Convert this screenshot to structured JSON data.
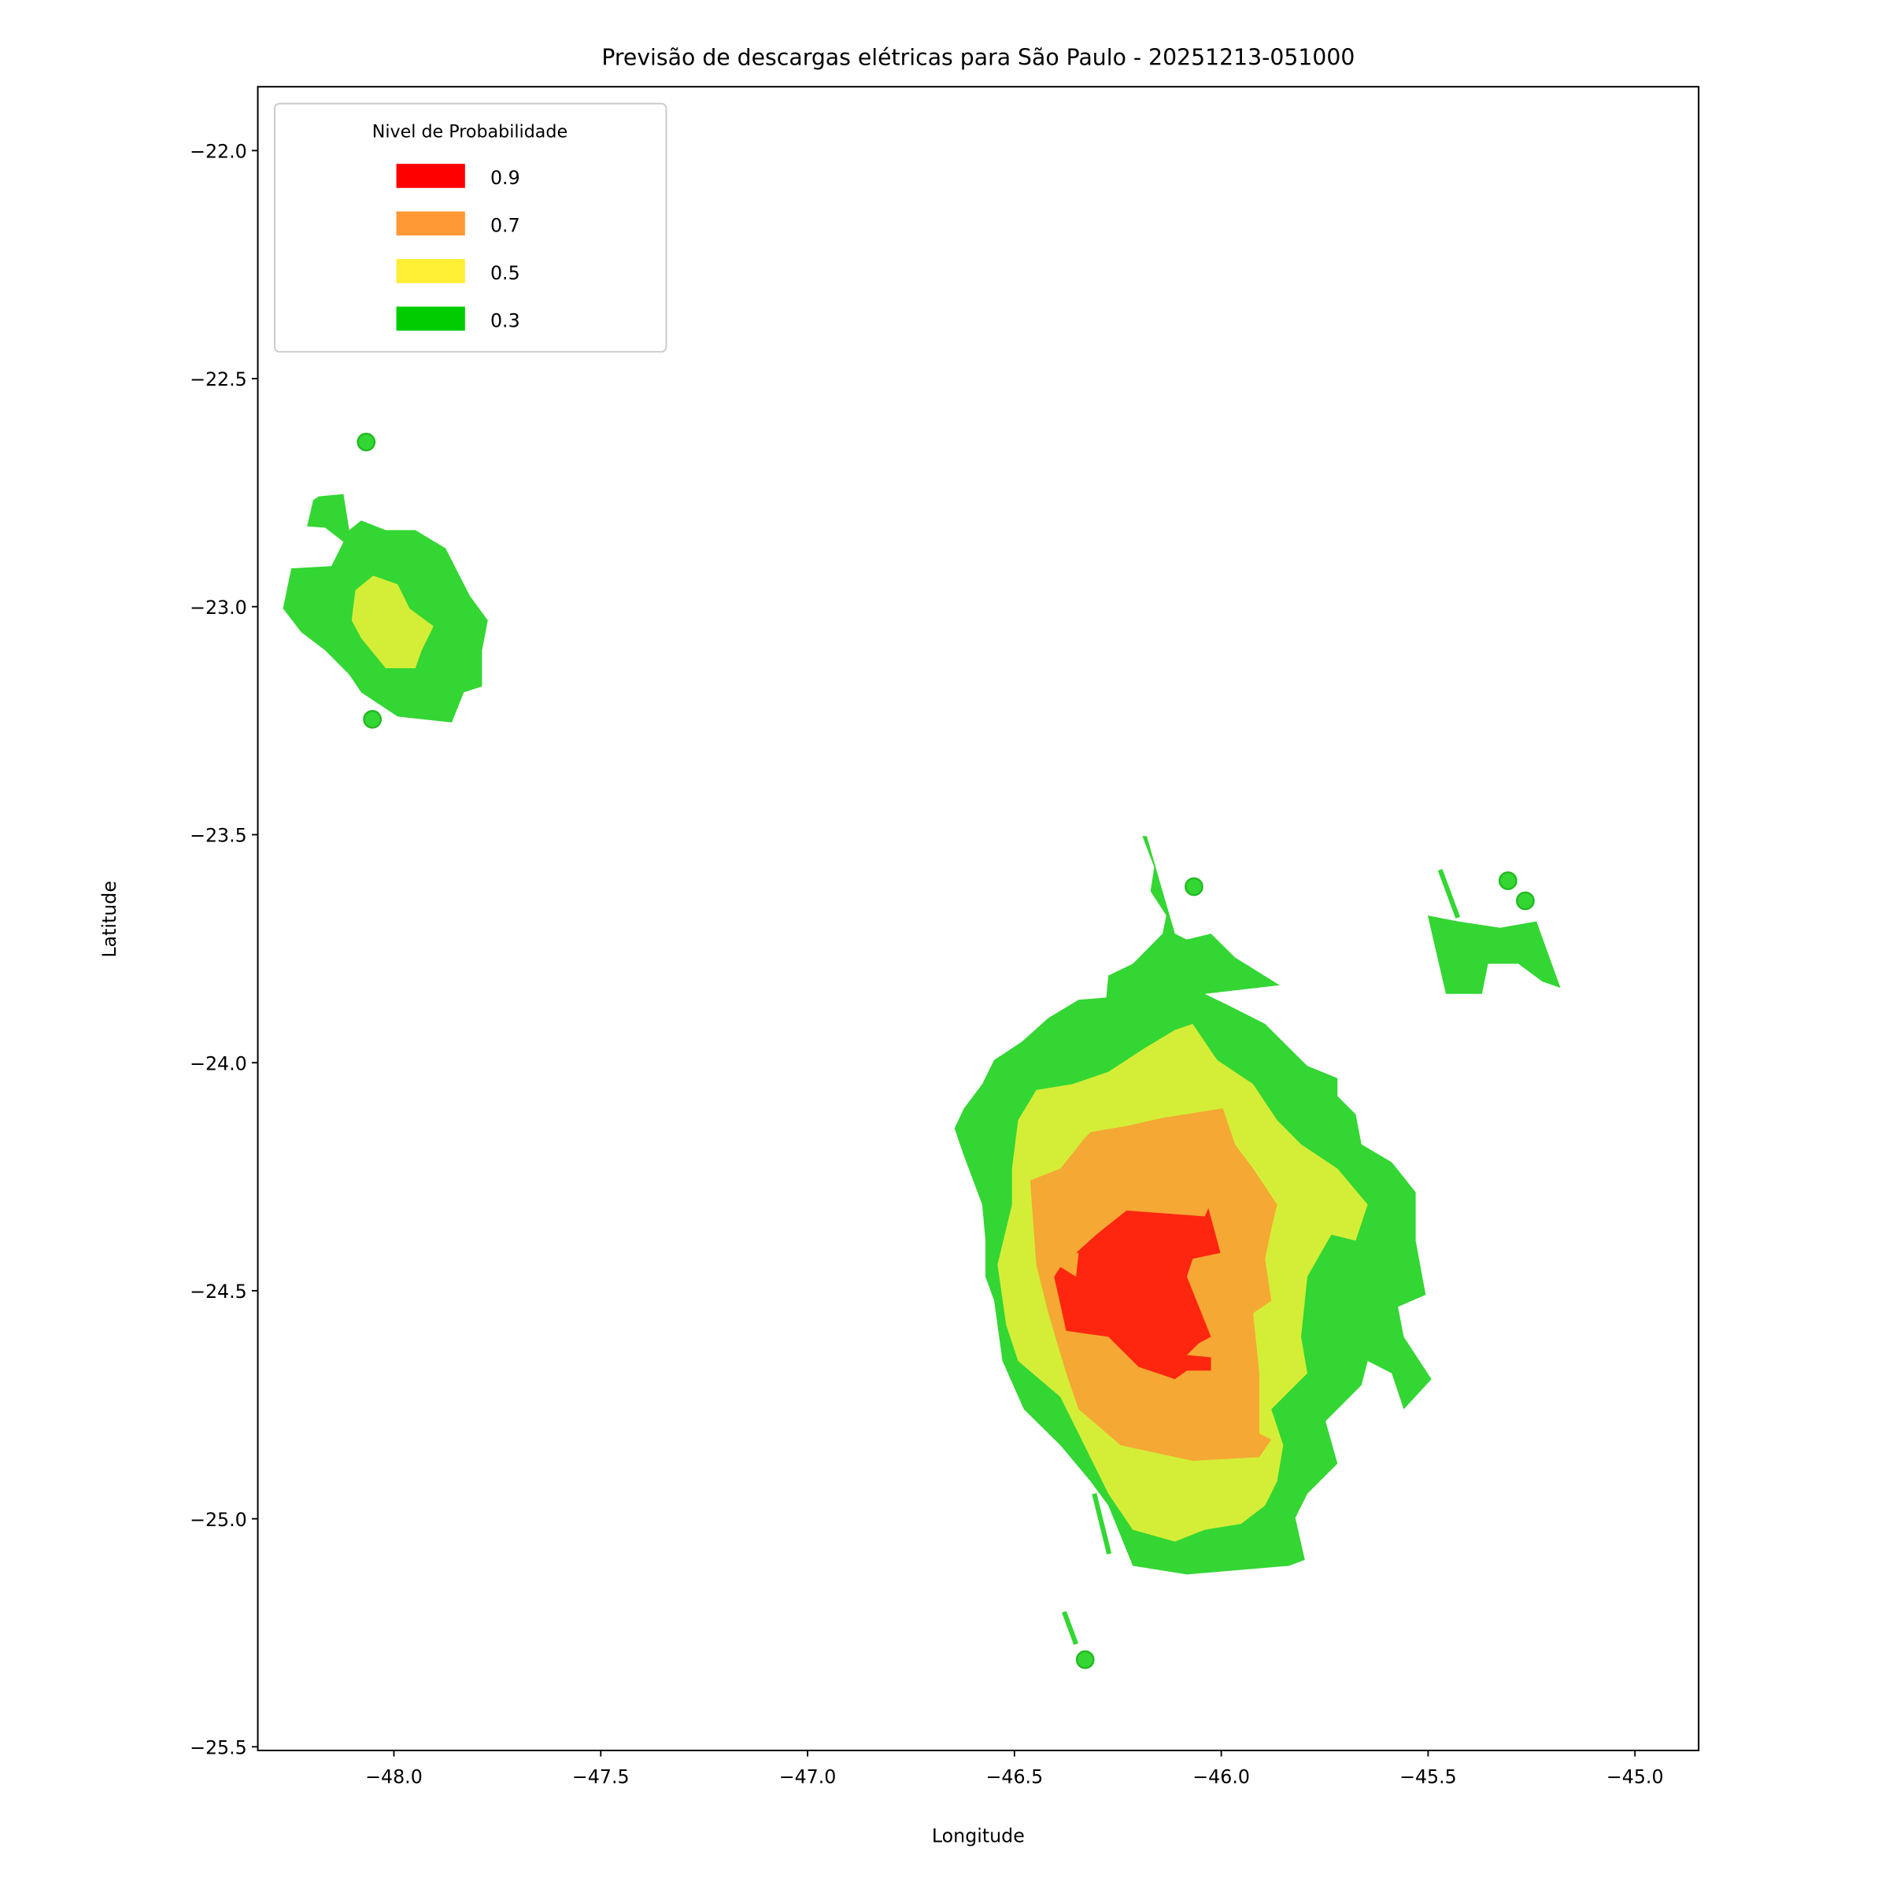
{
  "chart_data": {
    "type": "contour-map",
    "title": "Previsão de descargas elétricas para São Paulo - 20251213-051000",
    "xlabel": "Longitude",
    "ylabel": "Latitude",
    "xlim": [
      -48.329,
      -44.846
    ],
    "ylim": [
      -25.508,
      -21.86
    ],
    "grid": false,
    "x_ticks": [
      -48.0,
      -47.5,
      -47.0,
      -46.5,
      -46.0,
      -45.5,
      -45.0
    ],
    "x_tick_labels": [
      "−48.0",
      "−47.5",
      "−47.0",
      "−46.5",
      "−46.0",
      "−45.5",
      "−45.0"
    ],
    "y_ticks": [
      -22.0,
      -22.5,
      -23.0,
      -23.5,
      -24.0,
      -24.5,
      -25.0,
      -25.5
    ],
    "y_tick_labels": [
      "−22.0",
      "−22.5",
      "−23.0",
      "−23.5",
      "−24.0",
      "−24.5",
      "−25.0",
      "−25.5"
    ],
    "legend": {
      "title": "Nivel de Probabilidade",
      "placement": "upper-left",
      "entries": [
        {
          "label": "0.9",
          "color": "#ff0000"
        },
        {
          "label": "0.7",
          "color": "#ff9933"
        },
        {
          "label": "0.5",
          "color": "#ffee33"
        },
        {
          "label": "0.3",
          "color": "#00cc00"
        }
      ]
    },
    "fill_colors": {
      "0.3": "#33d633",
      "0.5": "#d4ee38",
      "0.7": "#f5a833",
      "0.9": "#ff2610"
    },
    "regions": [
      {
        "level": "0.3",
        "name": "main-storm",
        "points": [
          [
            -46.191,
            -23.503
          ],
          [
            -46.162,
            -23.571
          ],
          [
            -46.171,
            -23.624
          ],
          [
            -46.133,
            -23.677
          ],
          [
            -46.142,
            -23.717
          ],
          [
            -46.214,
            -23.783
          ],
          [
            -46.273,
            -23.809
          ],
          [
            -46.278,
            -23.857
          ],
          [
            -46.345,
            -23.862
          ],
          [
            -46.418,
            -23.902
          ],
          [
            -46.482,
            -23.954
          ],
          [
            -46.549,
            -23.994
          ],
          [
            -46.578,
            -24.047
          ],
          [
            -46.622,
            -24.1
          ],
          [
            -46.645,
            -24.144
          ],
          [
            -46.622,
            -24.205
          ],
          [
            -46.578,
            -24.311
          ],
          [
            -46.57,
            -24.39
          ],
          [
            -46.57,
            -24.469
          ],
          [
            -46.549,
            -24.522
          ],
          [
            -46.529,
            -24.654
          ],
          [
            -46.477,
            -24.76
          ],
          [
            -46.389,
            -24.839
          ],
          [
            -46.316,
            -24.918
          ],
          [
            -46.273,
            -24.971
          ],
          [
            -46.214,
            -25.103
          ],
          [
            -46.083,
            -25.122
          ],
          [
            -45.836,
            -25.103
          ],
          [
            -45.798,
            -25.09
          ],
          [
            -45.821,
            -24.998
          ],
          [
            -45.792,
            -24.945
          ],
          [
            -45.719,
            -24.879
          ],
          [
            -45.748,
            -24.786
          ],
          [
            -45.661,
            -24.707
          ],
          [
            -45.646,
            -24.654
          ],
          [
            -45.588,
            -24.681
          ],
          [
            -45.559,
            -24.76
          ],
          [
            -45.492,
            -24.694
          ],
          [
            -45.559,
            -24.601
          ],
          [
            -45.573,
            -24.535
          ],
          [
            -45.506,
            -24.509
          ],
          [
            -45.53,
            -24.39
          ],
          [
            -45.53,
            -24.284
          ],
          [
            -45.588,
            -24.218
          ],
          [
            -45.661,
            -24.179
          ],
          [
            -45.675,
            -24.113
          ],
          [
            -45.719,
            -24.073
          ],
          [
            -45.719,
            -24.034
          ],
          [
            -45.792,
            -24.007
          ],
          [
            -45.894,
            -23.915
          ],
          [
            -45.981,
            -23.875
          ],
          [
            -46.04,
            -23.849
          ],
          [
            -45.859,
            -23.83
          ],
          [
            -45.967,
            -23.769
          ],
          [
            -46.025,
            -23.717
          ],
          [
            -46.083,
            -23.73
          ],
          [
            -46.112,
            -23.717
          ],
          [
            -46.142,
            -23.624
          ],
          [
            -46.18,
            -23.503
          ]
        ]
      },
      {
        "level": "0.5",
        "name": "main-storm",
        "points": [
          [
            -46.069,
            -23.915
          ],
          [
            -46.01,
            -23.994
          ],
          [
            -45.923,
            -24.047
          ],
          [
            -45.865,
            -24.126
          ],
          [
            -45.807,
            -24.179
          ],
          [
            -45.719,
            -24.232
          ],
          [
            -45.646,
            -24.311
          ],
          [
            -45.675,
            -24.39
          ],
          [
            -45.734,
            -24.377
          ],
          [
            -45.792,
            -24.469
          ],
          [
            -45.807,
            -24.601
          ],
          [
            -45.792,
            -24.681
          ],
          [
            -45.879,
            -24.76
          ],
          [
            -45.85,
            -24.839
          ],
          [
            -45.865,
            -24.918
          ],
          [
            -45.894,
            -24.971
          ],
          [
            -45.952,
            -25.011
          ],
          [
            -46.04,
            -25.024
          ],
          [
            -46.112,
            -25.05
          ],
          [
            -46.214,
            -25.024
          ],
          [
            -46.273,
            -24.945
          ],
          [
            -46.331,
            -24.839
          ],
          [
            -46.389,
            -24.733
          ],
          [
            -46.491,
            -24.654
          ],
          [
            -46.52,
            -24.575
          ],
          [
            -46.541,
            -24.443
          ],
          [
            -46.506,
            -24.311
          ],
          [
            -46.506,
            -24.232
          ],
          [
            -46.491,
            -24.126
          ],
          [
            -46.447,
            -24.06
          ],
          [
            -46.36,
            -24.047
          ],
          [
            -46.273,
            -24.02
          ],
          [
            -46.185,
            -23.968
          ],
          [
            -46.112,
            -23.928
          ]
        ]
      },
      {
        "level": "0.7",
        "name": "main-storm",
        "points": [
          [
            -46.316,
            -24.152
          ],
          [
            -46.229,
            -24.139
          ],
          [
            -46.142,
            -24.121
          ],
          [
            -45.996,
            -24.1
          ],
          [
            -45.967,
            -24.179
          ],
          [
            -45.923,
            -24.232
          ],
          [
            -45.865,
            -24.311
          ],
          [
            -45.879,
            -24.364
          ],
          [
            -45.894,
            -24.43
          ],
          [
            -45.879,
            -24.522
          ],
          [
            -45.923,
            -24.549
          ],
          [
            -45.908,
            -24.681
          ],
          [
            -45.908,
            -24.813
          ],
          [
            -45.879,
            -24.826
          ],
          [
            -45.908,
            -24.865
          ],
          [
            -46.069,
            -24.873
          ],
          [
            -46.243,
            -24.839
          ],
          [
            -46.345,
            -24.76
          ],
          [
            -46.375,
            -24.681
          ],
          [
            -46.418,
            -24.549
          ],
          [
            -46.447,
            -24.443
          ],
          [
            -46.462,
            -24.258
          ],
          [
            -46.389,
            -24.232
          ],
          [
            -46.331,
            -24.166
          ]
        ]
      },
      {
        "level": "0.9",
        "name": "main-storm",
        "points": [
          [
            -46.351,
            -24.417
          ],
          [
            -46.302,
            -24.377
          ],
          [
            -46.229,
            -24.324
          ],
          [
            -46.04,
            -24.337
          ],
          [
            -46.031,
            -24.319
          ],
          [
            -46.002,
            -24.417
          ],
          [
            -46.069,
            -24.43
          ],
          [
            -46.083,
            -24.469
          ],
          [
            -46.054,
            -24.535
          ],
          [
            -46.025,
            -24.601
          ],
          [
            -46.054,
            -24.615
          ],
          [
            -46.083,
            -24.641
          ],
          [
            -46.025,
            -24.646
          ],
          [
            -46.025,
            -24.675
          ],
          [
            -46.083,
            -24.675
          ],
          [
            -46.112,
            -24.694
          ],
          [
            -46.2,
            -24.667
          ],
          [
            -46.273,
            -24.601
          ],
          [
            -46.375,
            -24.588
          ],
          [
            -46.404,
            -24.469
          ],
          [
            -46.389,
            -24.448
          ],
          [
            -46.351,
            -24.469
          ],
          [
            -46.345,
            -24.417
          ]
        ]
      },
      {
        "level": "0.3",
        "name": "northwest-storm",
        "points": [
          [
            -48.195,
            -22.766
          ],
          [
            -48.181,
            -22.758
          ],
          [
            -48.122,
            -22.753
          ],
          [
            -48.108,
            -22.832
          ],
          [
            -48.079,
            -22.811
          ],
          [
            -48.02,
            -22.832
          ],
          [
            -47.948,
            -22.832
          ],
          [
            -47.875,
            -22.872
          ],
          [
            -47.846,
            -22.924
          ],
          [
            -47.816,
            -22.977
          ],
          [
            -47.773,
            -23.03
          ],
          [
            -47.787,
            -23.096
          ],
          [
            -47.787,
            -23.175
          ],
          [
            -47.831,
            -23.188
          ],
          [
            -47.86,
            -23.254
          ],
          [
            -47.991,
            -23.241
          ],
          [
            -48.079,
            -23.188
          ],
          [
            -48.108,
            -23.149
          ],
          [
            -48.166,
            -23.096
          ],
          [
            -48.224,
            -23.056
          ],
          [
            -48.268,
            -23.004
          ],
          [
            -48.248,
            -22.916
          ],
          [
            -48.151,
            -22.911
          ],
          [
            -48.122,
            -22.858
          ],
          [
            -48.166,
            -22.827
          ],
          [
            -48.21,
            -22.824
          ]
        ]
      },
      {
        "level": "0.5",
        "name": "northwest-storm",
        "points": [
          [
            -48.093,
            -22.964
          ],
          [
            -48.05,
            -22.932
          ],
          [
            -47.991,
            -22.951
          ],
          [
            -47.962,
            -23.004
          ],
          [
            -47.904,
            -23.043
          ],
          [
            -47.933,
            -23.096
          ],
          [
            -47.948,
            -23.135
          ],
          [
            -48.02,
            -23.135
          ],
          [
            -48.079,
            -23.069
          ],
          [
            -48.102,
            -23.03
          ]
        ]
      },
      {
        "level": "0.3",
        "name": "east-storm",
        "points": [
          [
            -45.501,
            -23.677
          ],
          [
            -45.428,
            -23.69
          ],
          [
            -45.326,
            -23.704
          ],
          [
            -45.238,
            -23.69
          ],
          [
            -45.18,
            -23.836
          ],
          [
            -45.224,
            -23.822
          ],
          [
            -45.282,
            -23.783
          ],
          [
            -45.355,
            -23.783
          ],
          [
            -45.37,
            -23.849
          ],
          [
            -45.457,
            -23.849
          ]
        ]
      }
    ],
    "streaks": [
      {
        "level": "0.3",
        "from": [
          -46.38,
          -25.204
        ],
        "to": [
          -46.351,
          -25.275
        ]
      },
      {
        "level": "0.3",
        "from": [
          -46.307,
          -24.945
        ],
        "to": [
          -46.271,
          -25.077
        ]
      },
      {
        "level": "0.3",
        "from": [
          -45.471,
          -23.577
        ],
        "to": [
          -45.428,
          -23.682
        ]
      }
    ],
    "points": [
      {
        "level": "0.3",
        "lon": -48.067,
        "lat": -22.639
      },
      {
        "level": "0.3",
        "lon": -48.052,
        "lat": -23.247
      },
      {
        "level": "0.3",
        "lon": -46.066,
        "lat": -23.614
      },
      {
        "level": "0.3",
        "lon": -45.307,
        "lat": -23.601
      },
      {
        "level": "0.3",
        "lon": -45.265,
        "lat": -23.645
      },
      {
        "level": "0.3",
        "lon": -46.329,
        "lat": -25.309
      }
    ]
  }
}
